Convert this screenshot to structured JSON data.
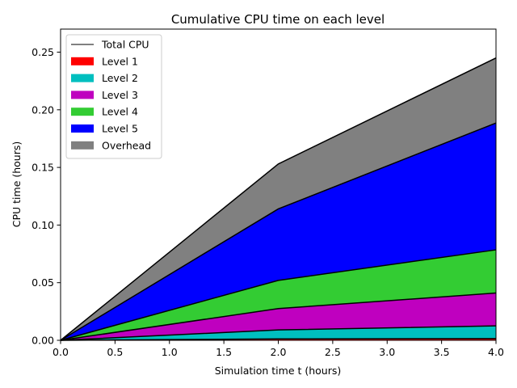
{
  "chart_data": {
    "type": "area",
    "stacked": true,
    "title": "Cumulative CPU time on each level",
    "xlabel": "Simulation time t (hours)",
    "ylabel": "CPU time (hours)",
    "xlim": [
      0,
      4
    ],
    "ylim": [
      0,
      0.27
    ],
    "xticks": [
      0,
      0.5,
      1,
      1.5,
      2,
      2.5,
      3,
      3.5,
      4
    ],
    "xtick_labels": [
      "0.0",
      "0.5",
      "1.0",
      "1.5",
      "2.0",
      "2.5",
      "3.0",
      "3.5",
      "4.0"
    ],
    "yticks": [
      0,
      0.05,
      0.1,
      0.15,
      0.2,
      0.25
    ],
    "ytick_labels": [
      "0.00",
      "0.05",
      "0.10",
      "0.15",
      "0.20",
      "0.25"
    ],
    "grid": false,
    "legend_position": "top-left",
    "x": [
      0,
      2,
      4
    ],
    "series": [
      {
        "name": "Level 1",
        "color": "#ff0000",
        "values": [
          0,
          0.0012,
          0.0015
        ]
      },
      {
        "name": "Level 2",
        "color": "#00bfbf",
        "values": [
          0,
          0.0078,
          0.011
        ]
      },
      {
        "name": "Level 3",
        "color": "#bf00bf",
        "values": [
          0,
          0.0185,
          0.0285
        ]
      },
      {
        "name": "Level 4",
        "color": "#33cc33",
        "values": [
          0,
          0.0245,
          0.0375
        ]
      },
      {
        "name": "Level 5",
        "color": "#0000ff",
        "values": [
          0,
          0.062,
          0.11
        ]
      },
      {
        "name": "Overhead",
        "color": "#808080",
        "values": [
          0,
          0.039,
          0.0565
        ]
      }
    ],
    "total_line": {
      "name": "Total CPU",
      "color": "#000000",
      "values": [
        0,
        0.153,
        0.245
      ]
    }
  }
}
